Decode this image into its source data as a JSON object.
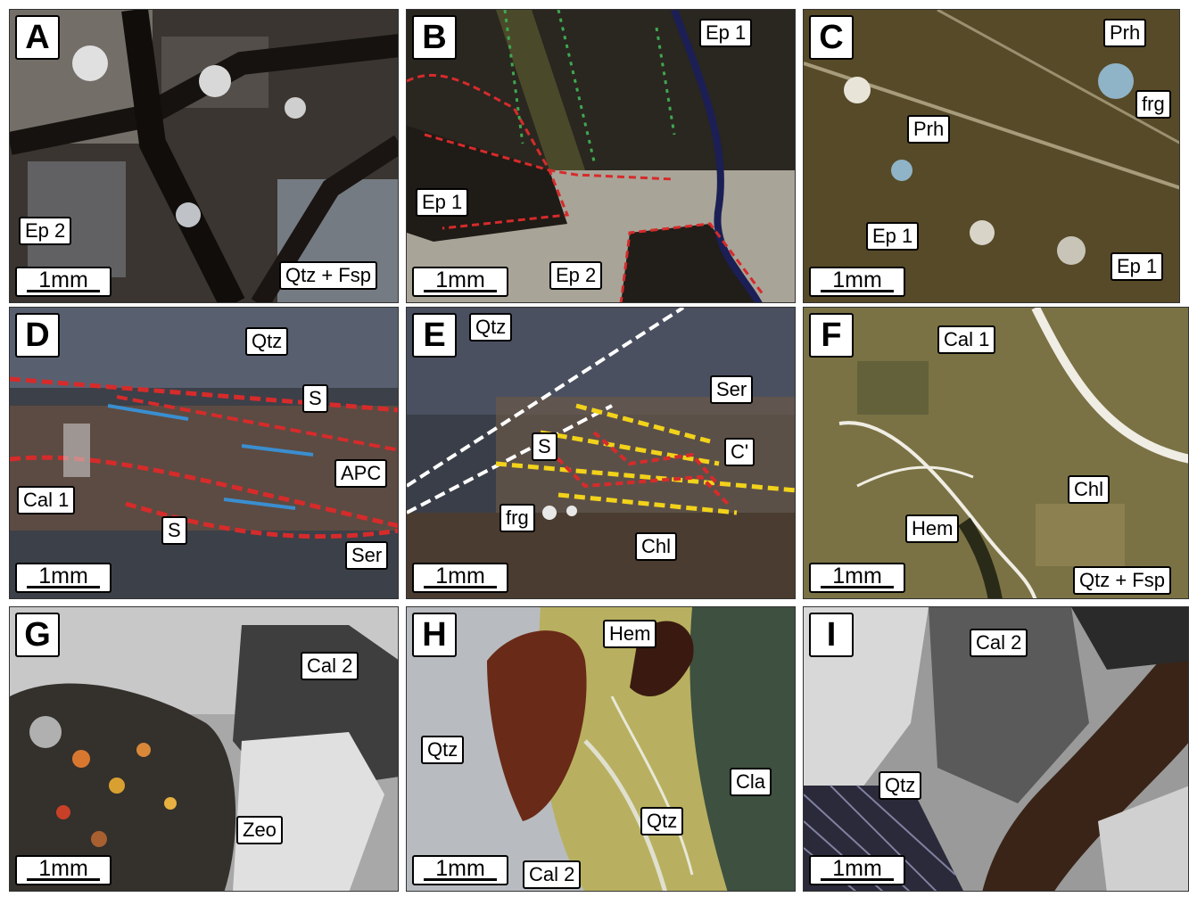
{
  "figure": {
    "scale_bar": "1mm",
    "panels": [
      {
        "letter": "A",
        "labels": [
          "Ep 2",
          "Qtz + Fsp"
        ]
      },
      {
        "letter": "B",
        "labels": [
          "Ep 1",
          "Ep 1",
          "Ep 2"
        ]
      },
      {
        "letter": "C",
        "labels": [
          "Prh",
          "frg",
          "Prh",
          "Ep 1",
          "Ep 1"
        ]
      },
      {
        "letter": "D",
        "labels": [
          "Qtz",
          "S",
          "Cal 1",
          "APC",
          "S",
          "Ser"
        ]
      },
      {
        "letter": "E",
        "labels": [
          "Qtz",
          "Ser",
          "C'",
          "S",
          "frg",
          "Chl"
        ]
      },
      {
        "letter": "F",
        "labels": [
          "Cal 1",
          "Chl",
          "Hem",
          "Qtz + Fsp"
        ]
      },
      {
        "letter": "G",
        "labels": [
          "Cal 2",
          "Zeo"
        ]
      },
      {
        "letter": "H",
        "labels": [
          "Hem",
          "Qtz",
          "Cla",
          "Qtz",
          "Cal 2"
        ]
      },
      {
        "letter": "I",
        "labels": [
          "Cal 2",
          "Qtz"
        ]
      }
    ]
  }
}
